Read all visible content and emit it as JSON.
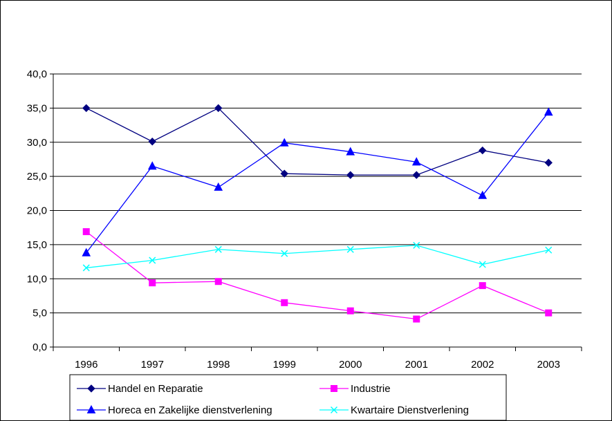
{
  "chart_data": {
    "type": "line",
    "title": "",
    "xlabel": "",
    "ylabel": "",
    "categories": [
      "1996",
      "1997",
      "1998",
      "1999",
      "2000",
      "2001",
      "2002",
      "2003"
    ],
    "ylim": [
      0,
      40
    ],
    "yticks": [
      "0,0",
      "5,0",
      "10,0",
      "15,0",
      "20,0",
      "25,0",
      "30,0",
      "35,0",
      "40,0"
    ],
    "grid": true,
    "legend_position": "bottom",
    "series": [
      {
        "name": "Handel en Reparatie",
        "color": "#000080",
        "marker": "diamond",
        "values": [
          35.0,
          30.1,
          35.0,
          25.4,
          25.2,
          25.2,
          28.8,
          27.0
        ]
      },
      {
        "name": "Industrie",
        "color": "#FF00FF",
        "marker": "square",
        "values": [
          16.9,
          9.4,
          9.6,
          6.5,
          5.3,
          4.1,
          9.0,
          5.0
        ]
      },
      {
        "name": "Horeca en Zakelijke dienstverlening",
        "color": "#0000FF",
        "marker": "triangle",
        "values": [
          13.8,
          26.5,
          23.4,
          29.9,
          28.6,
          27.1,
          22.2,
          34.4
        ]
      },
      {
        "name": "Kwartaire Dienstverlening",
        "color": "#00FFFF",
        "marker": "x",
        "values": [
          11.6,
          12.7,
          14.3,
          13.7,
          14.3,
          14.9,
          12.1,
          14.2
        ]
      }
    ]
  }
}
